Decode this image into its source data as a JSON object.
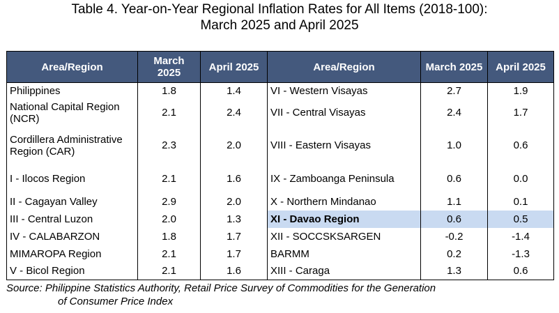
{
  "title": {
    "line1": "Table 4. Year-on-Year Regional Inflation Rates for All Items (2018-100):",
    "line2": "March 2025 and April 2025"
  },
  "headers": [
    "Area/Region",
    "March 2025",
    "April 2025",
    "Area/Region",
    "March 2025",
    "April 2025"
  ],
  "rows": [
    {
      "left": {
        "region": "Philippines",
        "march": "1.8",
        "april": "1.4"
      },
      "right": {
        "region": "VI - Western Visayas",
        "march": "2.7",
        "april": "1.9"
      }
    },
    {
      "left": {
        "region": "National Capital Region (NCR)",
        "march": "2.1",
        "april": "2.4"
      },
      "right": {
        "region": "VII - Central Visayas",
        "march": "2.4",
        "april": "1.7"
      }
    },
    {
      "left": {
        "region": "Cordillera Administrative Region (CAR)",
        "march": "2.3",
        "april": "2.0"
      },
      "right": {
        "region": "VIII - Eastern Visayas",
        "march": "1.0",
        "april": "0.6"
      }
    },
    {
      "left": {
        "region": "I - Ilocos Region",
        "march": "2.1",
        "april": "1.6"
      },
      "right": {
        "region": "IX - Zamboanga Peninsula",
        "march": "0.6",
        "april": "0.0"
      }
    },
    {
      "left": {
        "region": "II - Cagayan Valley",
        "march": "2.9",
        "april": "2.0"
      },
      "right": {
        "region": "X - Northern Mindanao",
        "march": "1.1",
        "april": "0.1"
      }
    },
    {
      "left": {
        "region": "III - Central Luzon",
        "march": "2.0",
        "april": "1.3"
      },
      "right": {
        "region": "XI - Davao Region",
        "march": "0.6",
        "april": "0.5"
      }
    },
    {
      "left": {
        "region": "IV - CALABARZON",
        "march": "1.8",
        "april": "1.7"
      },
      "right": {
        "region": "XII - SOCCSKSARGEN",
        "march": "-0.2",
        "april": "-1.4"
      }
    },
    {
      "left": {
        "region": "MIMAROPA Region",
        "march": "2.1",
        "april": "1.7"
      },
      "right": {
        "region": "BARMM",
        "march": "0.2",
        "april": "-1.3"
      }
    },
    {
      "left": {
        "region": "V - Bicol Region",
        "march": "2.1",
        "april": "1.6"
      },
      "right": {
        "region": "XIII - Caraga",
        "march": "1.3",
        "april": "0.6"
      }
    }
  ],
  "highlight": {
    "region": "XI - Davao Region",
    "color": "#c9daf1"
  },
  "header_color": "#44597d",
  "source": {
    "label": "Source:",
    "line1": "Philippine Statistics Authority, Retail Price Survey of Commodities for the Generation",
    "line2": "of Consumer Price Index"
  }
}
